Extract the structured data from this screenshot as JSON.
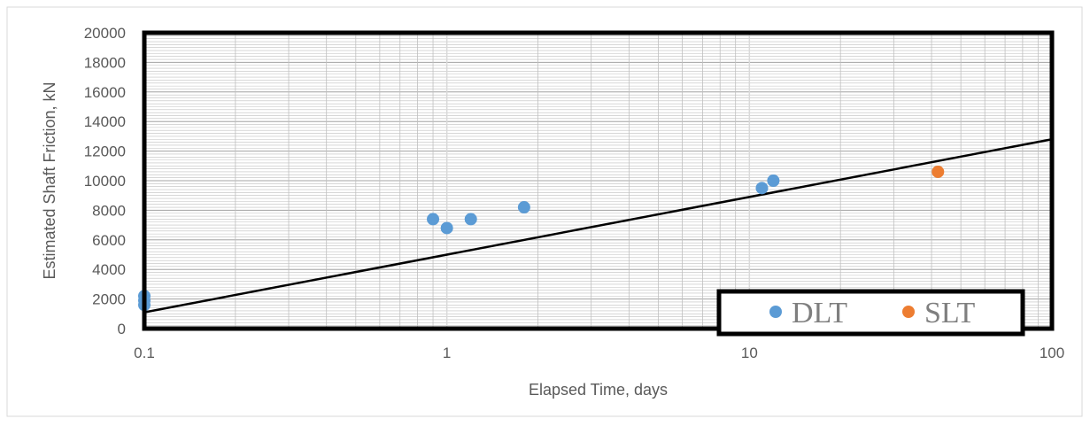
{
  "chart_data": {
    "type": "scatter",
    "title": "",
    "xlabel": "Elapsed Time, days",
    "ylabel": "Estimated Shaft Friction, kN",
    "xscale": "log",
    "xlim": [
      0.1,
      100
    ],
    "ylim": [
      0,
      20000
    ],
    "x_ticks": [
      0.1,
      1,
      10,
      100
    ],
    "x_tick_labels": [
      "0.1",
      "1",
      "10",
      "100"
    ],
    "y_ticks": [
      0,
      2000,
      4000,
      6000,
      8000,
      10000,
      12000,
      14000,
      16000,
      18000,
      20000
    ],
    "y_tick_labels": [
      "0",
      "2000",
      "4000",
      "6000",
      "8000",
      "10000",
      "12000",
      "14000",
      "16000",
      "18000",
      "20000"
    ],
    "grid": true,
    "legend_position": "bottom-right",
    "series": [
      {
        "name": "DLT",
        "color": "#5b9bd5",
        "points": [
          {
            "x": 0.1,
            "y": 2200
          },
          {
            "x": 0.1,
            "y": 1900
          },
          {
            "x": 0.1,
            "y": 1600
          },
          {
            "x": 0.9,
            "y": 7400
          },
          {
            "x": 1.0,
            "y": 6800
          },
          {
            "x": 1.2,
            "y": 7400
          },
          {
            "x": 1.8,
            "y": 8200
          },
          {
            "x": 11,
            "y": 9500
          },
          {
            "x": 12,
            "y": 10000
          }
        ]
      },
      {
        "name": "SLT",
        "color": "#ed7d31",
        "points": [
          {
            "x": 42,
            "y": 10600
          }
        ]
      }
    ],
    "trendline": {
      "type": "logarithmic",
      "color": "#000000",
      "points": [
        {
          "x": 0.1,
          "y": 1100
        },
        {
          "x": 100,
          "y": 12800
        }
      ]
    }
  }
}
